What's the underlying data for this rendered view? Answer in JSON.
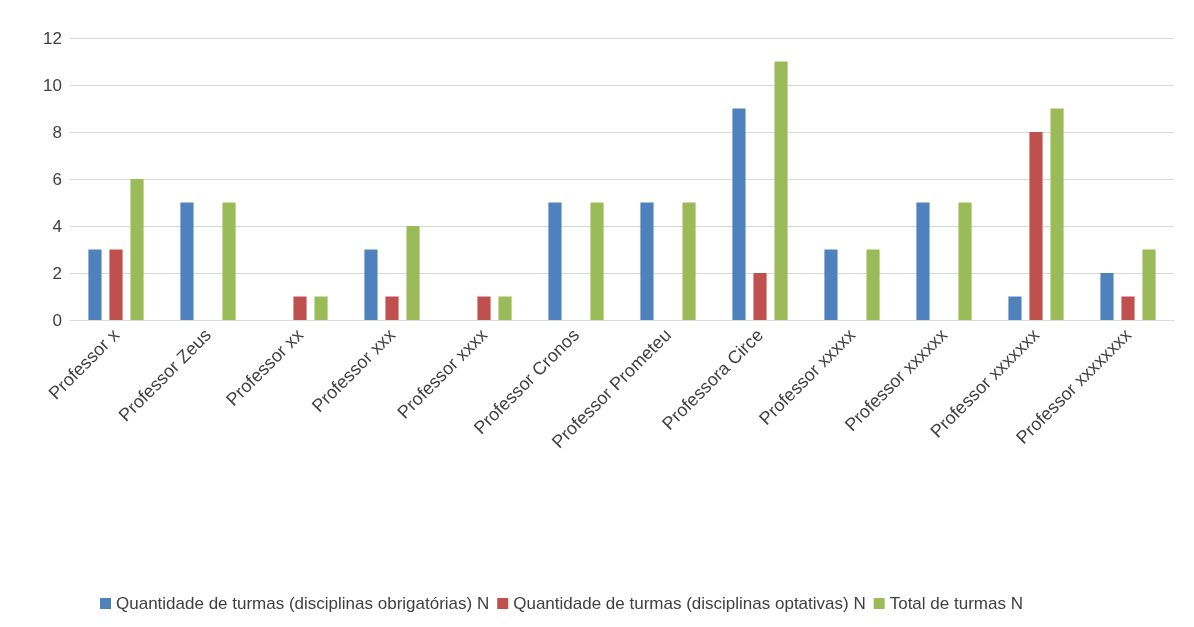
{
  "chart_data": {
    "type": "bar",
    "categories": [
      "Professor x",
      "Professor Zeus",
      "Professor xx",
      "Professor xxx",
      "Professor xxxx",
      "Professor Cronos",
      "Professor Prometeu",
      "Professora Circe",
      "Professor xxxxx",
      "Professor xxxxxx",
      "Professor xxxxxxx",
      "Professor xxxxxxxx"
    ],
    "series": [
      {
        "name": "Quantidade de turmas (disciplinas obrigatórias) N",
        "color": "#4f81bd",
        "values": [
          3,
          5,
          0,
          3,
          0,
          5,
          5,
          9,
          3,
          5,
          1,
          2
        ]
      },
      {
        "name": "Quantidade de turmas (disciplinas optativas) N",
        "color": "#c0504d",
        "values": [
          3,
          0,
          1,
          1,
          1,
          0,
          0,
          2,
          0,
          0,
          8,
          1
        ]
      },
      {
        "name": "Total de turmas N",
        "color": "#9bbb59",
        "values": [
          6,
          5,
          1,
          4,
          1,
          5,
          5,
          11,
          3,
          5,
          9,
          3
        ]
      }
    ],
    "ylim": [
      0,
      12
    ],
    "yticks": [
      0,
      2,
      4,
      6,
      8,
      10,
      12
    ],
    "grid": "y",
    "legend": "bottom"
  }
}
